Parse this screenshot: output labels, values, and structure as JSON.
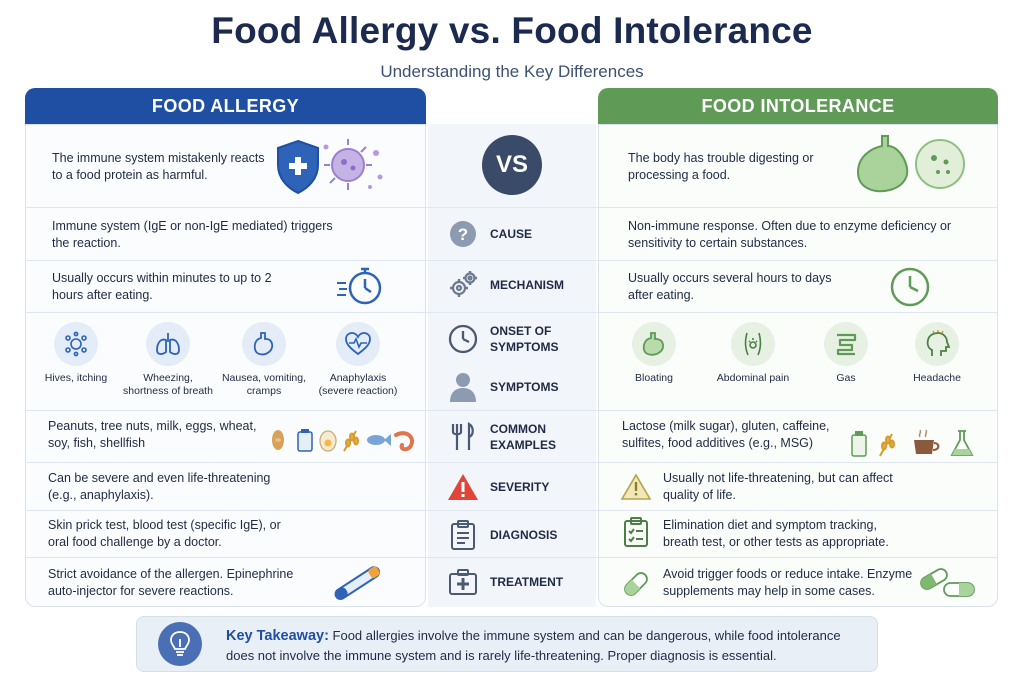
{
  "title": "Food Allergy vs. Food Intolerance",
  "subtitle": "Understanding the Key Differences",
  "headers": {
    "left": "FOOD ALLERGY",
    "right": "FOOD INTOLERANCE",
    "vs": "VS"
  },
  "intro": {
    "left": "The immune system mistakenly reacts to a food protein as harmful.",
    "right": "The body has trouble digesting or processing a food."
  },
  "categories": [
    {
      "label": "CAUSE",
      "icon": "question-icon"
    },
    {
      "label": "MECHANISM",
      "icon": "gears-icon"
    },
    {
      "label": "ONSET OF\nSYMPTOMS",
      "icon": "clock-icon"
    },
    {
      "label": "SYMPTOMS",
      "icon": "person-icon"
    },
    {
      "label": "COMMON\nEXAMPLES",
      "icon": "fork-knife-icon"
    },
    {
      "label": "SEVERITY",
      "icon": "warning-icon"
    },
    {
      "label": "DIAGNOSIS",
      "icon": "clipboard-icon"
    },
    {
      "label": "TREATMENT",
      "icon": "first-aid-icon"
    }
  ],
  "allergy": {
    "cause": "Immune system (IgE or non-IgE mediated) triggers the reaction.",
    "onset": "Usually occurs within minutes to up to 2 hours after eating.",
    "symptoms": [
      {
        "label": "Hives, itching",
        "icon": "hives-icon"
      },
      {
        "label": "Wheezing,\nshortness of breath",
        "icon": "lungs-icon"
      },
      {
        "label": "Nausea, vomiting,\ncramps",
        "icon": "stomach-icon"
      },
      {
        "label": "Anaphylaxis\n(severe reaction)",
        "icon": "heart-pulse-icon"
      }
    ],
    "examples": "Peanuts, tree nuts, milk, eggs, wheat, soy, fish, shellfish",
    "severity": "Can be severe and even life-threatening (e.g., anaphylaxis).",
    "diagnosis": "Skin prick test, blood test (specific IgE), or oral food challenge by a doctor.",
    "treatment": "Strict avoidance of the allergen. Epinephrine auto-injector for severe reactions."
  },
  "intolerance": {
    "cause": "Non-immune response. Often due to enzyme deficiency or sensitivity to certain substances.",
    "onset": "Usually occurs several hours to days after eating.",
    "symptoms": [
      {
        "label": "Bloating",
        "icon": "bloated-stomach-icon"
      },
      {
        "label": "Abdominal pain",
        "icon": "abdomen-icon"
      },
      {
        "label": "Gas",
        "icon": "intestine-icon"
      },
      {
        "label": "Headache",
        "icon": "headache-icon"
      }
    ],
    "examples": "Lactose (milk sugar), gluten, caffeine, sulfites, food additives (e.g., MSG)",
    "severity": "Usually not life-threatening, but can affect quality of life.",
    "diagnosis": "Elimination diet and symptom tracking, breath test, or other tests as appropriate.",
    "treatment": "Avoid trigger foods or reduce intake. Enzyme supplements may help in some cases."
  },
  "takeaway": {
    "heading": "Key Takeaway:",
    "text": "Food allergies involve the immune system and can be dangerous, while food intolerance does not involve the immune system and is rarely life-threatening. Proper diagnosis is essential."
  },
  "colors": {
    "allergy": "#1f4fa3",
    "intolerance": "#5f9b57",
    "vs": "#3a4b6a"
  }
}
